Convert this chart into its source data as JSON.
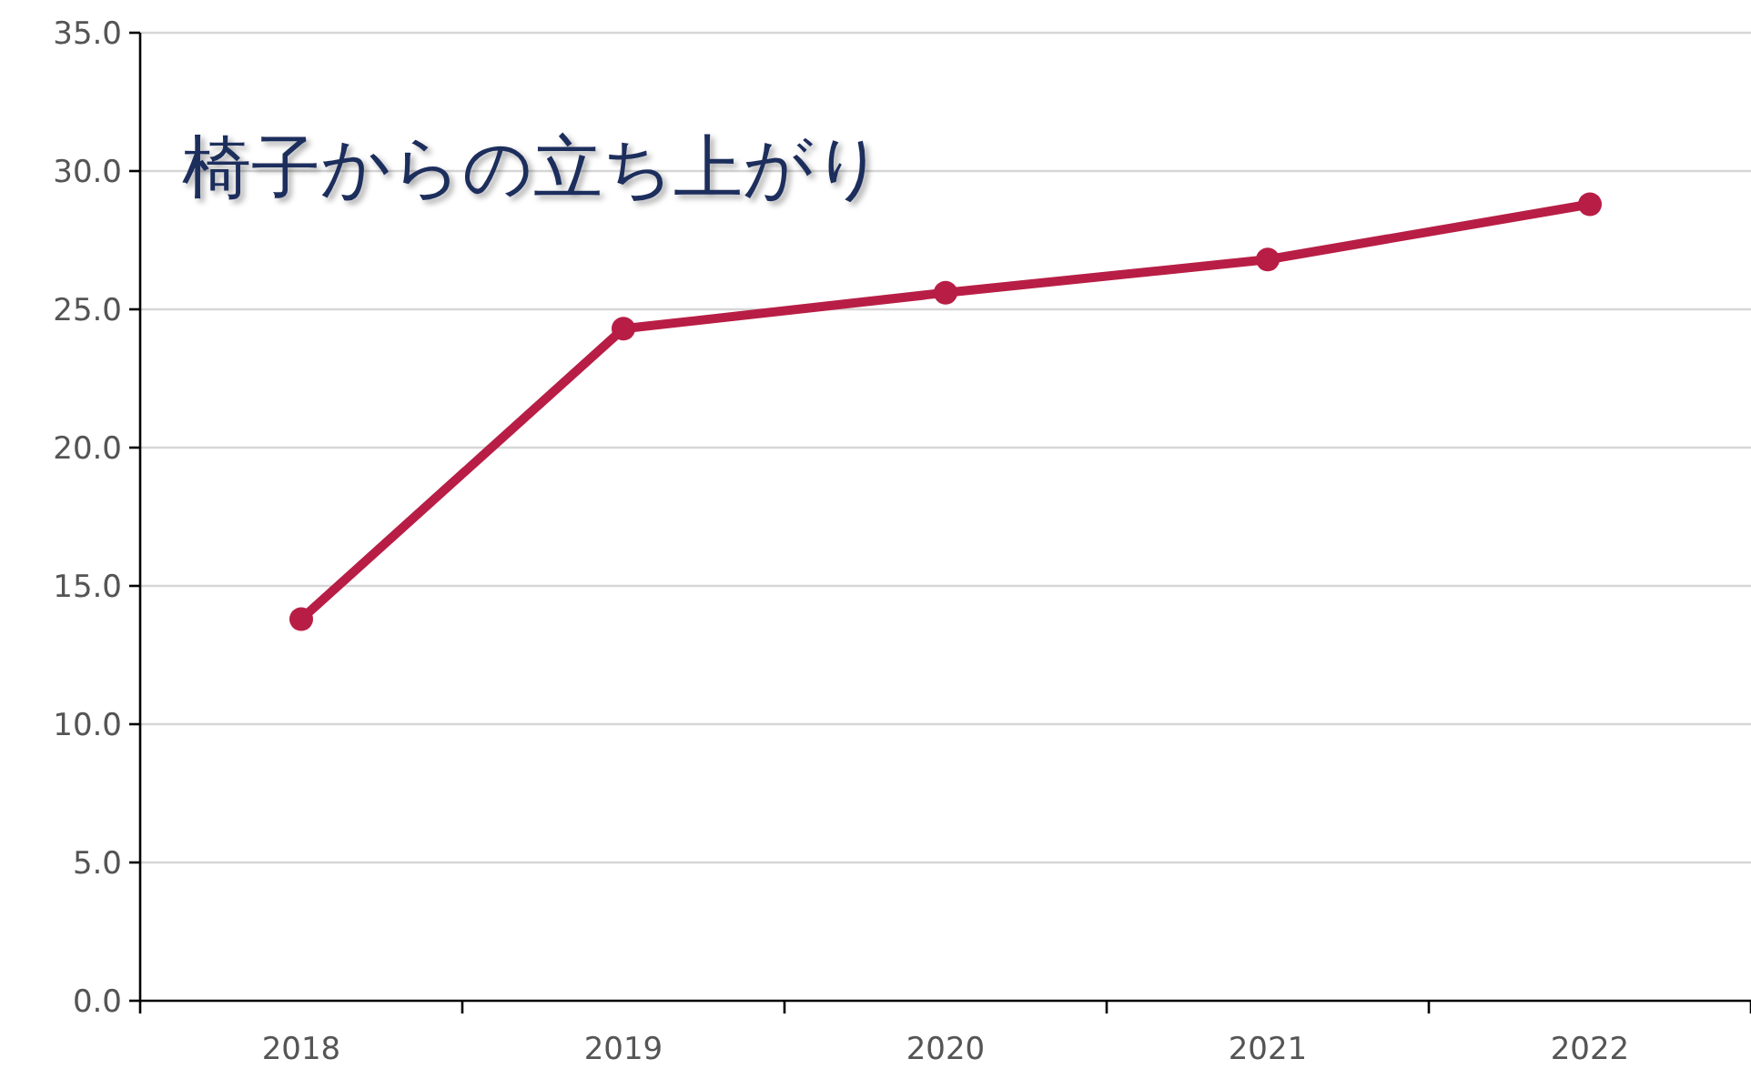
{
  "chart_data": {
    "type": "line",
    "title": "椅子からの立ち上がり",
    "categories": [
      "2018",
      "2019",
      "2020",
      "2021",
      "2022"
    ],
    "series": [
      {
        "color": "#b81e45",
        "values": [
          13.8,
          24.3,
          25.6,
          26.8,
          28.8
        ]
      }
    ],
    "ylim": [
      0,
      35
    ],
    "yticks": [
      {
        "value": 0,
        "label": "0.0"
      },
      {
        "value": 5,
        "label": "5.0"
      },
      {
        "value": 10,
        "label": "10.0"
      },
      {
        "value": 15,
        "label": "15.0"
      },
      {
        "value": 20,
        "label": "20.0"
      },
      {
        "value": 25,
        "label": "25.0"
      },
      {
        "value": 30,
        "label": "30.0"
      },
      {
        "value": 35,
        "label": "35.0"
      }
    ],
    "grid": "y",
    "marker": "circle",
    "line_style": "solid"
  }
}
